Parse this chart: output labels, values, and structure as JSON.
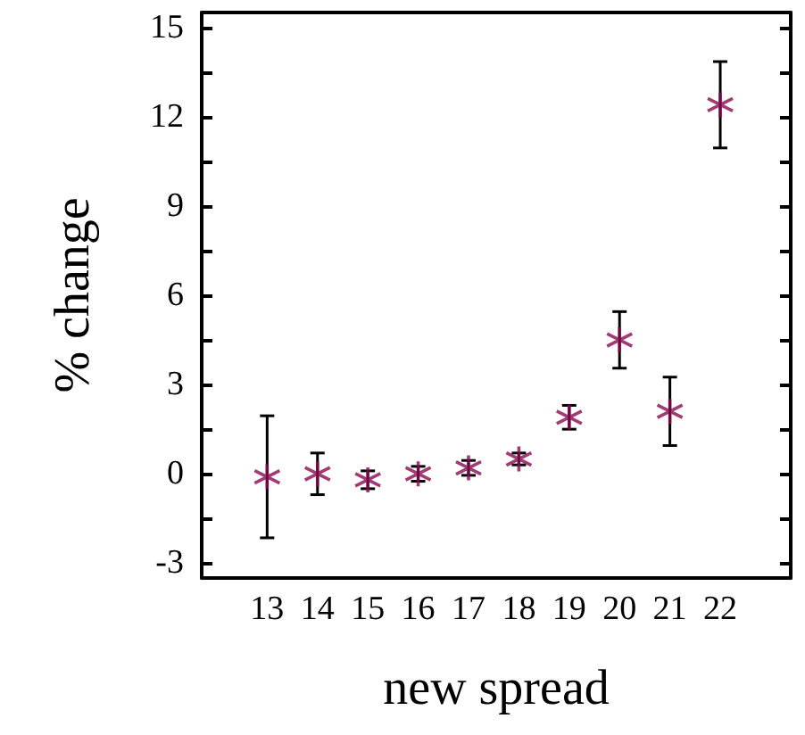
{
  "chart_data": {
    "type": "scatter",
    "xlabel": "new spread",
    "ylabel": "% change",
    "x": [
      13,
      14,
      15,
      16,
      17,
      18,
      19,
      20,
      21,
      22
    ],
    "series": [
      {
        "color": "#8b0a50",
        "values": [
          -0.1,
          0,
          -0.2,
          0,
          0.2,
          0.5,
          1.9,
          4.5,
          2.1,
          12.4
        ],
        "errors": [
          2.05,
          0.7,
          0.3,
          0.25,
          0.25,
          0.2,
          0.4,
          0.95,
          1.15,
          1.45
        ]
      }
    ],
    "marker": "cross",
    "xlim": [
      11.7,
      23.4
    ],
    "xticks": [
      13,
      14,
      15,
      16,
      17,
      18,
      19,
      20,
      21,
      22
    ],
    "ylim": [
      -3.5,
      15.5
    ],
    "yticks": [
      -3,
      {
        "value": -1.5,
        "label": null
      },
      0,
      {
        "value": 1.5,
        "label": null
      },
      3,
      {
        "value": 4.5,
        "label": null
      },
      6,
      {
        "value": 7.5,
        "label": null
      },
      9,
      {
        "value": 10.5,
        "label": null
      },
      12,
      {
        "value": 13.5,
        "label": null
      },
      15
    ],
    "grid": false
  }
}
